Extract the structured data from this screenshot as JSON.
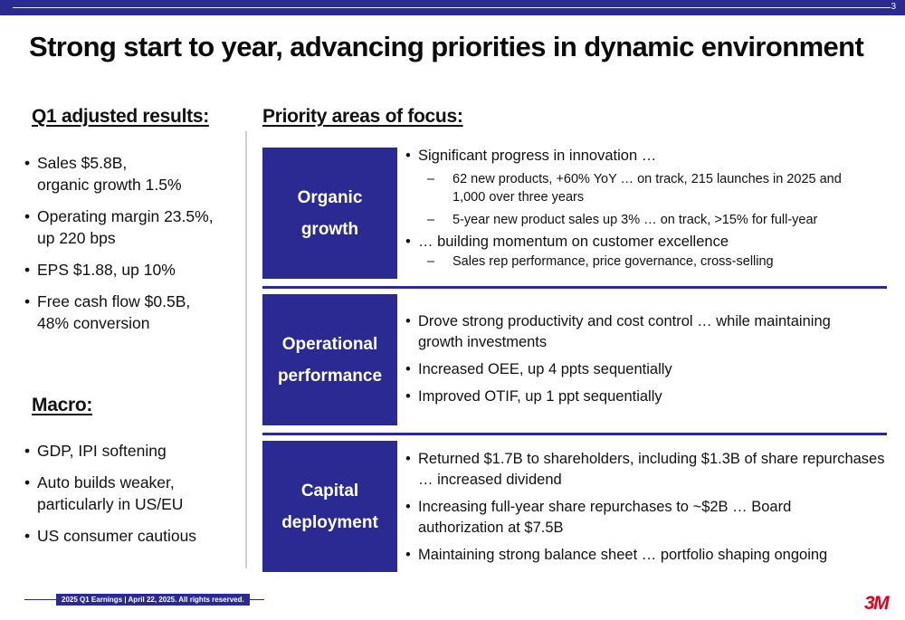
{
  "page_number": "3",
  "title": "Strong start to year, advancing priorities in dynamic environment",
  "q1": {
    "heading": "Q1 adjusted results:",
    "items": [
      {
        "l1": "Sales $5.8B,",
        "l2": "organic growth 1.5%"
      },
      {
        "l1": "Operating margin 23.5%,",
        "l2": "up 220 bps"
      },
      {
        "l1": "EPS $1.88, up 10%",
        "l2": ""
      },
      {
        "l1": "Free cash flow $0.5B,",
        "l2": "48% conversion"
      }
    ]
  },
  "macro": {
    "heading": "Macro:",
    "items": [
      {
        "l1": "GDP, IPI softening",
        "l2": ""
      },
      {
        "l1": "Auto builds weaker,",
        "l2": "particularly in US/EU"
      },
      {
        "l1": "US consumer cautious",
        "l2": ""
      }
    ]
  },
  "priority": {
    "heading": "Priority areas of focus:",
    "sections": [
      {
        "box_l1": "Organic",
        "box_l2": "growth",
        "bullets": [
          {
            "l1": "Significant progress in innovation …",
            "l2": "",
            "subs": [
              {
                "l1": "62 new products, +60% YoY … on track, 215 launches in 2025 and",
                "l2": "1,000 over three years"
              },
              {
                "l1": "5-year new product sales up 3% … on track, >15% for full-year",
                "l2": ""
              }
            ]
          },
          {
            "l1": "… building momentum on customer excellence",
            "l2": "",
            "subs": [
              {
                "l1": "Sales rep performance, price governance, cross-selling",
                "l2": ""
              }
            ]
          }
        ]
      },
      {
        "box_l1": "Operational",
        "box_l2": "performance",
        "bullets": [
          {
            "l1": "Drove strong productivity and cost control … while maintaining",
            "l2": "growth investments"
          },
          {
            "l1": "Increased OEE, up 4 ppts sequentially",
            "l2": ""
          },
          {
            "l1": "Improved OTIF, up 1 ppt sequentially",
            "l2": ""
          }
        ]
      },
      {
        "box_l1": "Capital",
        "box_l2": "deployment",
        "bullets": [
          {
            "l1": "Returned $1.7B to shareholders, including $1.3B of share repurchases",
            "l2": "… increased dividend"
          },
          {
            "l1": "Increasing full-year share repurchases to ~$2B … Board",
            "l2": "authorization at $7.5B"
          },
          {
            "l1": "Maintaining strong balance sheet … portfolio shaping ongoing",
            "l2": ""
          }
        ]
      }
    ]
  },
  "footer": "2025 Q1 Earnings | April 22, 2025. All rights reserved.",
  "logo": "3M",
  "colors": {
    "brand_navy": "#2a2a92",
    "logo_red": "#e3001b"
  }
}
